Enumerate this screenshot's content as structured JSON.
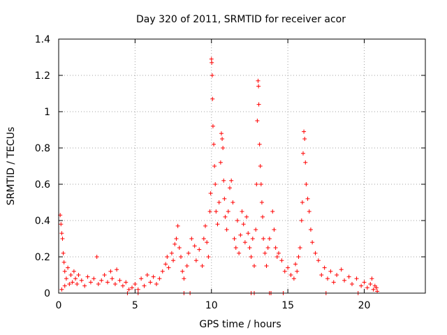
{
  "chart_data": {
    "type": "scatter",
    "title": "Day 320 of 2011, SRMTID for receiver acor",
    "xlabel": "GPS time / hours",
    "ylabel": "SRMTID / TECUs",
    "xlim": [
      0,
      24
    ],
    "ylim": [
      0,
      1.4
    ],
    "xticks": [
      0,
      5,
      10,
      15,
      20
    ],
    "xtick_labels": [
      "0",
      "5",
      "10",
      "15",
      "20"
    ],
    "yticks": [
      0,
      0.2,
      0.4,
      0.6,
      0.8,
      1.0,
      1.2,
      1.4
    ],
    "ytick_labels": [
      "0",
      "0.2",
      "0.4",
      "0.6",
      "0.8",
      "1",
      "1.2",
      "1.4"
    ],
    "grid": true,
    "marker": "+",
    "color": "#ff0000",
    "series": [
      {
        "name": "SRMTID",
        "points": [
          [
            0.1,
            0.43
          ],
          [
            0.15,
            0.38
          ],
          [
            0.2,
            0.33
          ],
          [
            0.25,
            0.3
          ],
          [
            0.3,
            0.22
          ],
          [
            0.35,
            0.17
          ],
          [
            0.4,
            0.12
          ],
          [
            0.5,
            0.08
          ],
          [
            0.6,
            0.14
          ],
          [
            0.7,
            0.05
          ],
          [
            0.2,
            0.02
          ],
          [
            0.4,
            0.04
          ],
          [
            0.8,
            0.1
          ],
          [
            0.9,
            0.06
          ],
          [
            1.0,
            0.12
          ],
          [
            1.1,
            0.08
          ],
          [
            1.2,
            0.05
          ],
          [
            1.3,
            0.1
          ],
          [
            1.5,
            0.07
          ],
          [
            1.7,
            0.04
          ],
          [
            1.9,
            0.09
          ],
          [
            2.1,
            0.06
          ],
          [
            2.3,
            0.08
          ],
          [
            2.5,
            0.2
          ],
          [
            2.6,
            0.05
          ],
          [
            2.8,
            0.07
          ],
          [
            3.0,
            0.1
          ],
          [
            3.2,
            0.06
          ],
          [
            3.4,
            0.12
          ],
          [
            3.5,
            0.08
          ],
          [
            3.7,
            0.05
          ],
          [
            3.8,
            0.13
          ],
          [
            4.0,
            0.07
          ],
          [
            4.2,
            0.04
          ],
          [
            4.4,
            0.06
          ],
          [
            4.6,
            0.02
          ],
          [
            4.8,
            0.03
          ],
          [
            5.0,
            0.05
          ],
          [
            5.2,
            0.02
          ],
          [
            5.4,
            0.08
          ],
          [
            5.6,
            0.04
          ],
          [
            5.8,
            0.1
          ],
          [
            6.0,
            0.06
          ],
          [
            6.2,
            0.09
          ],
          [
            6.4,
            0.05
          ],
          [
            6.6,
            0.08
          ],
          [
            6.8,
            0.12
          ],
          [
            7.0,
            0.16
          ],
          [
            7.1,
            0.2
          ],
          [
            7.2,
            0.14
          ],
          [
            7.4,
            0.22
          ],
          [
            7.5,
            0.18
          ],
          [
            7.6,
            0.27
          ],
          [
            7.7,
            0.3
          ],
          [
            7.8,
            0.37
          ],
          [
            7.9,
            0.25
          ],
          [
            8.0,
            0.2
          ],
          [
            8.1,
            0.12
          ],
          [
            8.2,
            0.08
          ],
          [
            8.4,
            0.15
          ],
          [
            8.5,
            0.22
          ],
          [
            8.7,
            0.3
          ],
          [
            8.9,
            0.26
          ],
          [
            9.0,
            0.18
          ],
          [
            9.2,
            0.24
          ],
          [
            9.4,
            0.15
          ],
          [
            9.5,
            0.3
          ],
          [
            9.6,
            0.37
          ],
          [
            9.7,
            0.28
          ],
          [
            9.8,
            0.2
          ],
          [
            9.9,
            0.45
          ],
          [
            9.95,
            0.55
          ],
          [
            10.0,
            1.29
          ],
          [
            10.02,
            1.27
          ],
          [
            10.05,
            1.2
          ],
          [
            10.07,
            1.07
          ],
          [
            10.1,
            0.92
          ],
          [
            10.15,
            0.82
          ],
          [
            10.2,
            0.7
          ],
          [
            10.25,
            0.6
          ],
          [
            10.3,
            0.45
          ],
          [
            10.4,
            0.38
          ],
          [
            10.5,
            0.5
          ],
          [
            10.6,
            0.72
          ],
          [
            10.65,
            0.88
          ],
          [
            10.7,
            0.85
          ],
          [
            10.75,
            0.8
          ],
          [
            10.8,
            0.62
          ],
          [
            10.85,
            0.52
          ],
          [
            10.9,
            0.42
          ],
          [
            11.0,
            0.35
          ],
          [
            11.1,
            0.45
          ],
          [
            11.2,
            0.58
          ],
          [
            11.3,
            0.62
          ],
          [
            11.4,
            0.5
          ],
          [
            11.5,
            0.3
          ],
          [
            11.6,
            0.25
          ],
          [
            11.7,
            0.4
          ],
          [
            11.8,
            0.22
          ],
          [
            11.9,
            0.32
          ],
          [
            12.0,
            0.45
          ],
          [
            12.1,
            0.38
          ],
          [
            12.2,
            0.28
          ],
          [
            12.3,
            0.42
          ],
          [
            12.4,
            0.33
          ],
          [
            12.5,
            0.25
          ],
          [
            12.6,
            0.2
          ],
          [
            12.7,
            0.3
          ],
          [
            12.8,
            0.15
          ],
          [
            12.9,
            0.35
          ],
          [
            12.95,
            0.6
          ],
          [
            13.0,
            0.95
          ],
          [
            13.05,
            1.17
          ],
          [
            13.08,
            1.14
          ],
          [
            13.1,
            1.04
          ],
          [
            13.15,
            0.82
          ],
          [
            13.2,
            0.7
          ],
          [
            13.25,
            0.6
          ],
          [
            13.3,
            0.5
          ],
          [
            13.35,
            0.42
          ],
          [
            13.4,
            0.3
          ],
          [
            13.5,
            0.22
          ],
          [
            13.6,
            0.15
          ],
          [
            13.7,
            0.25
          ],
          [
            13.8,
            0.3
          ],
          [
            14.0,
            0.45
          ],
          [
            14.1,
            0.35
          ],
          [
            14.2,
            0.25
          ],
          [
            14.3,
            0.2
          ],
          [
            14.4,
            0.22
          ],
          [
            14.6,
            0.18
          ],
          [
            14.8,
            0.12
          ],
          [
            15.0,
            0.14
          ],
          [
            15.2,
            0.1
          ],
          [
            15.4,
            0.08
          ],
          [
            15.5,
            0.16
          ],
          [
            15.6,
            0.12
          ],
          [
            15.7,
            0.2
          ],
          [
            15.8,
            0.25
          ],
          [
            15.9,
            0.4
          ],
          [
            15.95,
            0.5
          ],
          [
            16.0,
            0.77
          ],
          [
            16.05,
            0.89
          ],
          [
            16.1,
            0.85
          ],
          [
            16.15,
            0.72
          ],
          [
            16.2,
            0.6
          ],
          [
            16.3,
            0.52
          ],
          [
            16.4,
            0.45
          ],
          [
            16.5,
            0.35
          ],
          [
            16.6,
            0.28
          ],
          [
            16.8,
            0.22
          ],
          [
            17.0,
            0.18
          ],
          [
            17.2,
            0.1
          ],
          [
            17.4,
            0.14
          ],
          [
            17.6,
            0.08
          ],
          [
            17.8,
            0.12
          ],
          [
            18.0,
            0.06
          ],
          [
            18.2,
            0.1
          ],
          [
            18.5,
            0.13
          ],
          [
            18.7,
            0.07
          ],
          [
            19.0,
            0.09
          ],
          [
            19.2,
            0.05
          ],
          [
            19.5,
            0.08
          ],
          [
            19.8,
            0.04
          ],
          [
            20.0,
            0.06
          ],
          [
            20.2,
            0.03
          ],
          [
            20.4,
            0.05
          ],
          [
            20.5,
            0.08
          ],
          [
            20.6,
            0.02
          ],
          [
            20.7,
            0.04
          ],
          [
            20.8,
            0.03
          ],
          [
            20.85,
            0.01
          ],
          [
            4.5,
            0.0
          ],
          [
            5.2,
            0.0
          ],
          [
            8.2,
            0.0
          ],
          [
            8.6,
            0.0
          ],
          [
            12.6,
            0.0
          ],
          [
            12.8,
            0.0
          ],
          [
            13.8,
            0.0
          ],
          [
            13.9,
            0.0
          ],
          [
            14.7,
            0.0
          ],
          [
            17.5,
            0.0
          ],
          [
            19.6,
            0.0
          ]
        ]
      }
    ]
  }
}
